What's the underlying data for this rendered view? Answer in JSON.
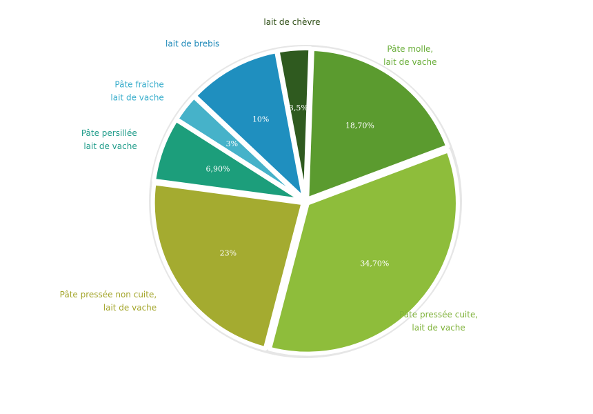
{
  "chart_data": {
    "type": "pie",
    "categories": [
      [
        "Pâte molle,",
        "lait de vache"
      ],
      [
        "Pâte pressée cuite,",
        "lait de vache"
      ],
      [
        "Pâte pressée non cuite,",
        "lait de vache"
      ],
      [
        "Pâte persillée",
        "lait de vache"
      ],
      [
        "Pâte fraîche",
        "lait de vache"
      ],
      [
        "lait de brebis"
      ],
      [
        "lait de chèvre"
      ]
    ],
    "values": [
      18.7,
      34.7,
      23,
      6.9,
      3,
      10,
      3.5
    ],
    "value_labels": [
      "18,70%",
      "34,70%",
      "23%",
      "6,90%",
      "3%",
      "10%",
      "3,5%"
    ],
    "colors": [
      "#5b9b2f",
      "#8ebd3b",
      "#a4ab30",
      "#1c9e7b",
      "#46b2c9",
      "#1f8fbf",
      "#2f5a1f"
    ],
    "label_colors": [
      "#6aae3a",
      "#7fb23a",
      "#a3a52a",
      "#1f9c8a",
      "#3aaecc",
      "#1d88b8",
      "#2e4e15"
    ]
  }
}
